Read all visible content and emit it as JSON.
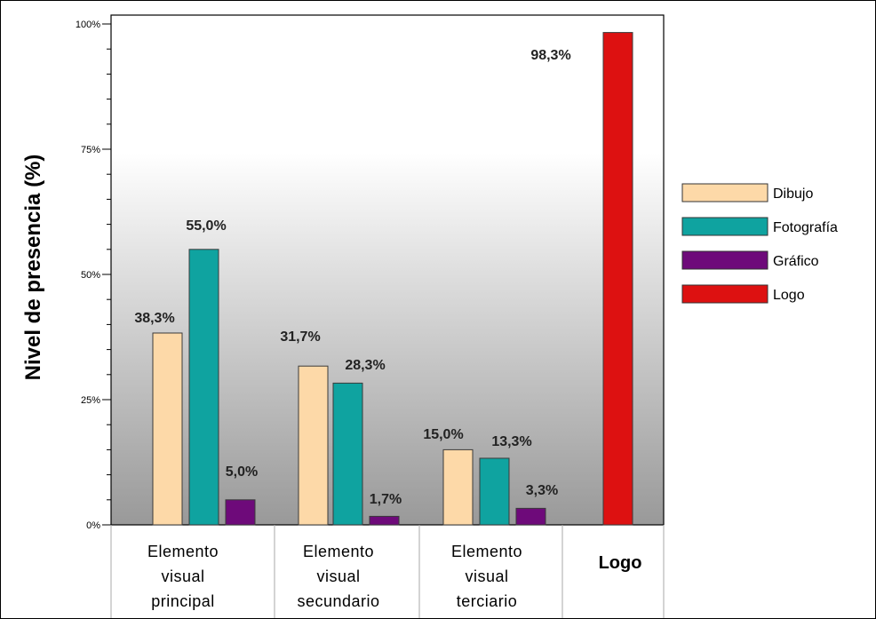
{
  "chart_data": {
    "type": "bar",
    "ylabel": "Nivel de presencia (%)",
    "ylim": [
      0,
      100
    ],
    "ytick_labels": [
      "0%",
      "25%",
      "50%",
      "75%",
      "100%"
    ],
    "categories": [
      [
        "Elemento",
        "visual",
        "principal"
      ],
      [
        "Elemento",
        "visual",
        "secundario"
      ],
      [
        "Elemento",
        "visual",
        "terciario"
      ],
      [
        "Logo"
      ]
    ],
    "series": [
      {
        "name": "Dibujo",
        "color": "#FDD9A8",
        "values": [
          38.3,
          31.7,
          15.0,
          null
        ],
        "labels": [
          "38,3%",
          "31,7%",
          "15,0%",
          ""
        ]
      },
      {
        "name": "Fotografía",
        "color": "#0FA3A0",
        "values": [
          55.0,
          28.3,
          13.3,
          null
        ],
        "labels": [
          "55,0%",
          "28,3%",
          "13,3%",
          ""
        ]
      },
      {
        "name": "Gráfico",
        "color": "#6E0A7A",
        "values": [
          5.0,
          1.7,
          3.3,
          null
        ],
        "labels": [
          "5,0%",
          "1,7%",
          "3,3%",
          ""
        ]
      },
      {
        "name": "Logo",
        "color": "#DD1111",
        "values": [
          null,
          null,
          null,
          98.3
        ],
        "labels": [
          "",
          "",
          "",
          "98,3%"
        ]
      }
    ],
    "legend_position": "right",
    "grid": false,
    "background": "vertical gradient white to gray"
  }
}
